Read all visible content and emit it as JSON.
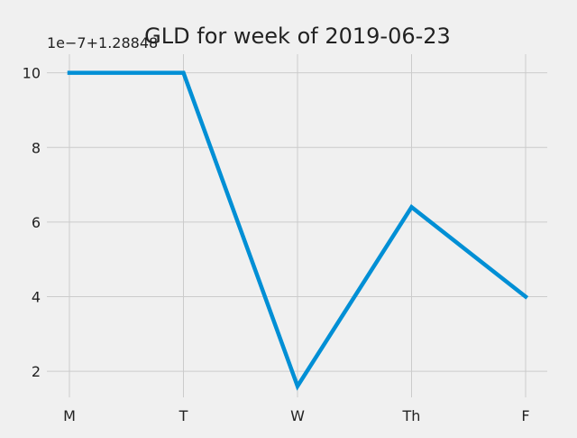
{
  "chart_data": {
    "type": "line",
    "title": "GLD for week of 2019-06-23",
    "offset_label": "1e−7+1.28848",
    "x": [
      "M",
      "T",
      "W",
      "Th",
      "F"
    ],
    "y_ticks": [
      "2",
      "4",
      "6",
      "8",
      "10"
    ],
    "y_tick_values": [
      2,
      4,
      6,
      8,
      10
    ],
    "ylim": [
      1.3,
      10.5
    ],
    "series": [
      {
        "values": [
          10.0,
          10.0,
          1.6,
          6.4,
          4.0
        ],
        "color": "#008fd5"
      }
    ],
    "grid": true,
    "xlabel": "",
    "ylabel": ""
  }
}
